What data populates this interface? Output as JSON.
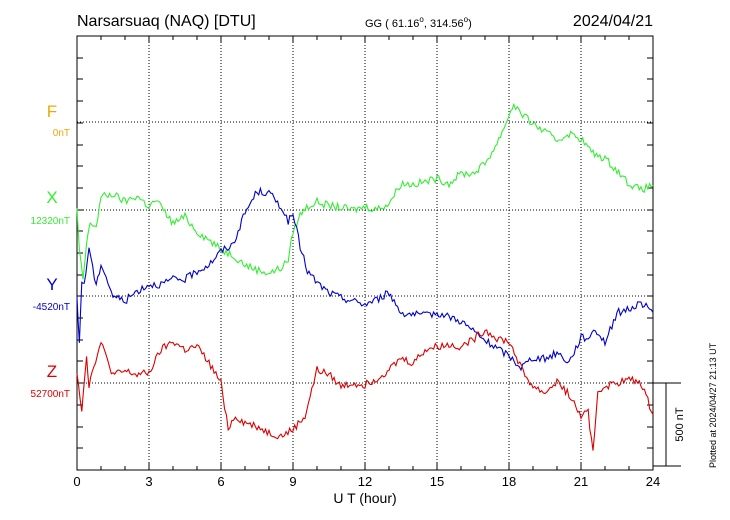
{
  "header": {
    "station": "Narsarsuaq (NAQ)  [DTU]",
    "coords_prefix": "GG ( 61.16",
    "coords_mid": ", 314.56",
    "coords_suffix": ")",
    "degree_symbol": "o",
    "date": "2024/04/21"
  },
  "footer": {
    "plotted": "Plotted at 2024/04/27 21:13 UT"
  },
  "chart_data": {
    "type": "line",
    "xlabel": "U T (hour)",
    "xlim": [
      0,
      24
    ],
    "xticks": [
      "0",
      "3",
      "6",
      "9",
      "12",
      "15",
      "18",
      "21",
      "24"
    ],
    "scale_bar_label": "500 nT",
    "scale_bar_nT": 500,
    "series": [
      {
        "name": "F",
        "baseline_label": "0nT",
        "color": "#f0a800",
        "x": [],
        "y": []
      },
      {
        "name": "X",
        "baseline_label": "12320nT",
        "color": "#33ee33",
        "x": [
          0,
          0.1,
          0.25,
          0.4,
          0.5,
          0.6,
          0.8,
          1,
          1.5,
          2,
          2.5,
          3,
          3.3,
          3.6,
          4,
          4.5,
          5,
          5.5,
          6,
          6.5,
          7,
          7.5,
          8,
          8.5,
          8.8,
          9,
          9.3,
          9.5,
          10,
          10.5,
          11,
          11.5,
          12,
          12.5,
          13,
          13.5,
          14,
          14.5,
          15,
          15.5,
          16,
          16.5,
          17,
          17.5,
          18,
          18.2,
          18.5,
          19,
          19.5,
          20,
          20.5,
          21,
          21.5,
          22,
          22.5,
          23,
          23.5,
          24
        ],
        "y": [
          0,
          -250,
          -430,
          -200,
          -110,
          -80,
          -100,
          80,
          95,
          50,
          85,
          20,
          60,
          0,
          -80,
          -40,
          -130,
          -180,
          -240,
          -270,
          -330,
          -360,
          -380,
          -350,
          -300,
          -130,
          -30,
          10,
          50,
          25,
          15,
          0,
          20,
          5,
          40,
          160,
          155,
          170,
          190,
          160,
          220,
          220,
          280,
          400,
          570,
          640,
          580,
          520,
          470,
          420,
          460,
          430,
          340,
          310,
          240,
          160,
          120,
          150
        ]
      },
      {
        "name": "Y",
        "baseline_label": "-4520nT",
        "color": "#0000cc",
        "x": [
          0,
          0.1,
          0.2,
          0.3,
          0.5,
          0.8,
          1,
          1.5,
          2,
          2.5,
          3,
          3.5,
          4,
          4.5,
          5,
          5.5,
          6,
          6.5,
          7,
          7.5,
          8,
          8.5,
          8.8,
          9,
          9.3,
          9.6,
          10,
          10.5,
          11,
          11.5,
          12,
          12.5,
          13,
          13.5,
          14,
          14.5,
          15,
          16,
          17,
          18,
          18.5,
          19,
          19.5,
          20,
          20.5,
          21,
          21.3,
          21.6,
          22,
          22.5,
          23,
          23.5,
          24
        ],
        "y": [
          -30,
          -280,
          100,
          60,
          300,
          50,
          200,
          0,
          -30,
          30,
          70,
          70,
          100,
          100,
          150,
          190,
          270,
          310,
          500,
          630,
          620,
          540,
          450,
          490,
          300,
          150,
          80,
          20,
          -10,
          -30,
          -50,
          -20,
          20,
          -100,
          -110,
          -120,
          -100,
          -150,
          -270,
          -360,
          -430,
          -370,
          -380,
          -340,
          -400,
          -250,
          -250,
          -200,
          -280,
          -100,
          -80,
          -40,
          -100
        ]
      },
      {
        "name": "Z",
        "baseline_label": "52700nT",
        "color": "#dd0000",
        "x": [
          0,
          0.2,
          0.4,
          0.5,
          0.7,
          1,
          1.5,
          2,
          2.5,
          3,
          3.5,
          4,
          4.5,
          5,
          5.5,
          6,
          6.3,
          6.6,
          7,
          7.5,
          8,
          8.5,
          9,
          9.5,
          10,
          10.5,
          11,
          11.5,
          12,
          12.5,
          13,
          13.5,
          14,
          14.5,
          15,
          15.5,
          16,
          16.5,
          17,
          17.5,
          18,
          18.3,
          18.6,
          19,
          19.5,
          20,
          20.5,
          21,
          21.3,
          21.5,
          21.7,
          22,
          22.5,
          23,
          23.5,
          24
        ],
        "y": [
          70,
          -160,
          170,
          -20,
          110,
          240,
          50,
          70,
          50,
          60,
          200,
          250,
          200,
          220,
          120,
          0,
          -270,
          -200,
          -240,
          -260,
          -300,
          -320,
          -280,
          -200,
          80,
          50,
          -20,
          0,
          -10,
          30,
          80,
          150,
          120,
          200,
          220,
          230,
          220,
          260,
          320,
          270,
          250,
          160,
          60,
          -20,
          -60,
          10,
          -70,
          -200,
          -180,
          -420,
          -50,
          -20,
          0,
          20,
          0,
          -190
        ]
      }
    ]
  }
}
